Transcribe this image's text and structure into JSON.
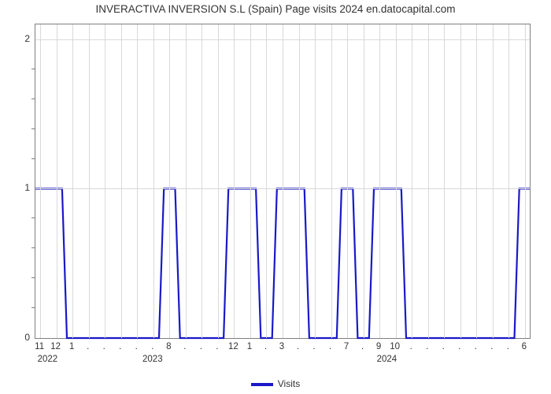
{
  "chart": {
    "type": "line",
    "title": "INVERACTIVA INVERSION S.L (Spain) Page visits 2024 en.datocapital.com",
    "title_fontsize": 13.5,
    "title_color": "#333333",
    "background_color": "#ffffff",
    "plot_border_color": "#7f7f7f",
    "grid_color": "#d9d9d9",
    "line_color": "#1919c8",
    "line_width": 2.2,
    "ylim": [
      0,
      2.1
    ],
    "y_major_ticks": [
      0,
      1,
      2
    ],
    "y_minor_tick_count_between": 4,
    "x_categories": [
      "11",
      "12",
      "1",
      ".",
      ".",
      ".",
      ".",
      ".",
      "8",
      ".",
      ".",
      ".",
      "12",
      "1",
      ".",
      "3",
      ".",
      ".",
      ".",
      "7",
      ".",
      "9",
      "10",
      ".",
      ".",
      ".",
      ".",
      ".",
      ".",
      ".",
      "6"
    ],
    "x_year_groups": [
      {
        "label": "2022",
        "center_index": 0.5
      },
      {
        "label": "2023",
        "center_index": 7.0
      },
      {
        "label": "2024",
        "center_index": 21.5
      }
    ],
    "y_values": [
      1,
      1,
      0,
      0,
      0,
      0,
      0,
      0,
      1,
      0,
      0,
      0,
      1,
      1,
      0,
      1,
      1,
      0,
      0,
      1,
      0,
      1,
      1,
      0,
      0,
      0,
      0,
      0,
      0,
      0,
      1
    ],
    "legend": {
      "label": "Visits",
      "color": "#1919c8"
    }
  }
}
